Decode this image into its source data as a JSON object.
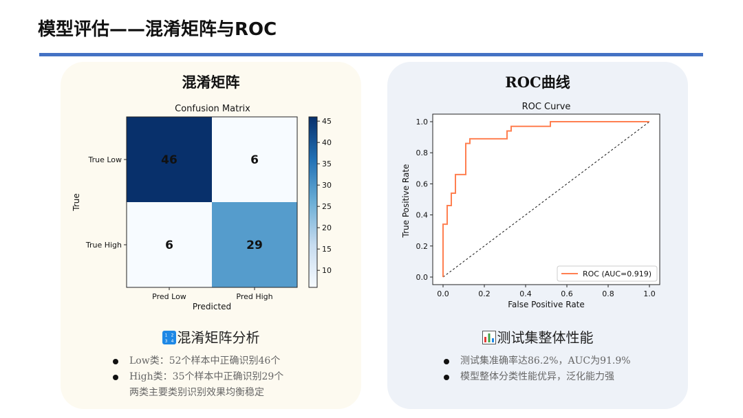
{
  "page": {
    "title": "模型评估——混淆矩阵与ROC"
  },
  "left_card": {
    "heading": "混淆矩阵",
    "sub_heading": "混淆矩阵分析",
    "sub_icon": "input-numbers-icon",
    "bullets": [
      "Low类：52个样本中正确识别46个",
      "High类：35个样本中正确识别29个",
      "两类主要类别识别效果均衡稳定"
    ]
  },
  "right_card": {
    "heading": "ROC曲线",
    "sub_heading": "测试集整体性能",
    "sub_icon": "bar-chart-icon",
    "bullets": [
      "测试集准确率达86.2%，AUC为91.9%",
      "模型整体分类性能优异，泛化能力强"
    ]
  },
  "colors": {
    "rule": "#4472c4",
    "roc_line": "#ff7f50",
    "cm_dark": "#08306b",
    "cm_mid": "#4a98c9",
    "cm_light": "#f4f9fe"
  },
  "chart_data": [
    {
      "type": "heatmap",
      "title": "Confusion Matrix",
      "xlabel": "Predicted",
      "ylabel": "True",
      "x_categories": [
        "Pred Low",
        "Pred High"
      ],
      "y_categories": [
        "True Low",
        "True High"
      ],
      "values": [
        [
          46,
          6
        ],
        [
          6,
          29
        ]
      ],
      "colorbar": {
        "ticks": [
          10,
          15,
          20,
          25,
          30,
          35,
          40,
          45
        ],
        "range": [
          6,
          46
        ],
        "colormap": "Blues"
      }
    },
    {
      "type": "line",
      "title": "ROC Curve",
      "xlabel": "False Positive Rate",
      "ylabel": "True Positive Rate",
      "xlim": [
        0,
        1
      ],
      "ylim": [
        0,
        1
      ],
      "xticks": [
        "0.0",
        "0.2",
        "0.4",
        "0.6",
        "0.8",
        "1.0"
      ],
      "yticks": [
        "0.0",
        "0.2",
        "0.4",
        "0.6",
        "0.8",
        "1.0"
      ],
      "legend_position": "bottom-right",
      "series": [
        {
          "name": "ROC (AUC=0.919)",
          "x": [
            0.0,
            0.0,
            0.0,
            0.02,
            0.02,
            0.04,
            0.04,
            0.06,
            0.06,
            0.1,
            0.11,
            0.11,
            0.13,
            0.13,
            0.31,
            0.31,
            0.33,
            0.33,
            0.52,
            0.52,
            1.0
          ],
          "y": [
            0.0,
            0.03,
            0.34,
            0.34,
            0.46,
            0.46,
            0.54,
            0.54,
            0.66,
            0.66,
            0.66,
            0.86,
            0.86,
            0.89,
            0.89,
            0.94,
            0.94,
            0.97,
            0.97,
            1.0,
            1.0
          ]
        }
      ],
      "reference_line": {
        "x": [
          0,
          1
        ],
        "y": [
          0,
          1
        ],
        "style": "dashed"
      }
    }
  ]
}
